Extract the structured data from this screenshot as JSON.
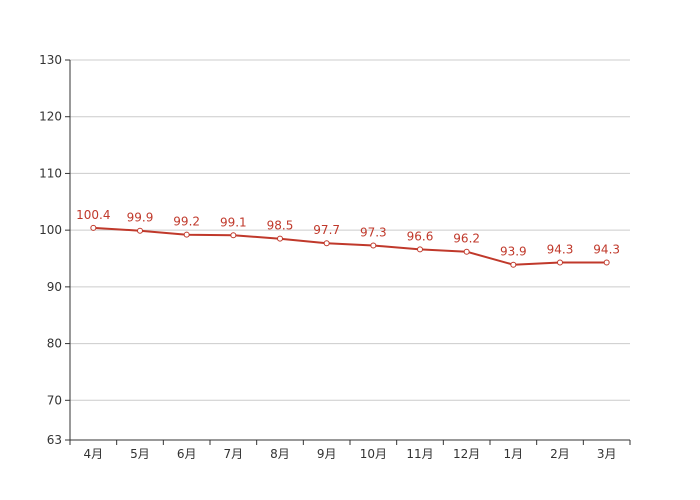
{
  "chart_data": {
    "type": "line",
    "title": "",
    "xlabel": "",
    "ylabel": "",
    "categories": [
      "4月",
      "5月",
      "6月",
      "7月",
      "8月",
      "9月",
      "10月",
      "11月",
      "12月",
      "1月",
      "2月",
      "3月"
    ],
    "series": [
      {
        "values": [
          100.4,
          99.9,
          99.2,
          99.1,
          98.5,
          97.7,
          97.3,
          96.6,
          96.2,
          93.9,
          94.3,
          94.3
        ],
        "color": "#c0392b"
      }
    ],
    "data_labels": [
      "100.4",
      "99.9",
      "99.2",
      "99.1",
      "98.5",
      "97.7",
      "97.3",
      "96.6",
      "96.2",
      "93.9",
      "94.3",
      "94.3"
    ],
    "y_ticks": [
      63,
      70,
      80,
      90,
      100,
      110,
      120,
      130
    ],
    "y_tick_labels": [
      "63",
      "70",
      "80",
      "90",
      "100",
      "110",
      "120",
      "130"
    ],
    "ylim": [
      63,
      130
    ],
    "grid": true,
    "legend": "none",
    "colors": {
      "line": "#c0392b",
      "grid": "#cccccc",
      "axis": "#333333"
    }
  }
}
